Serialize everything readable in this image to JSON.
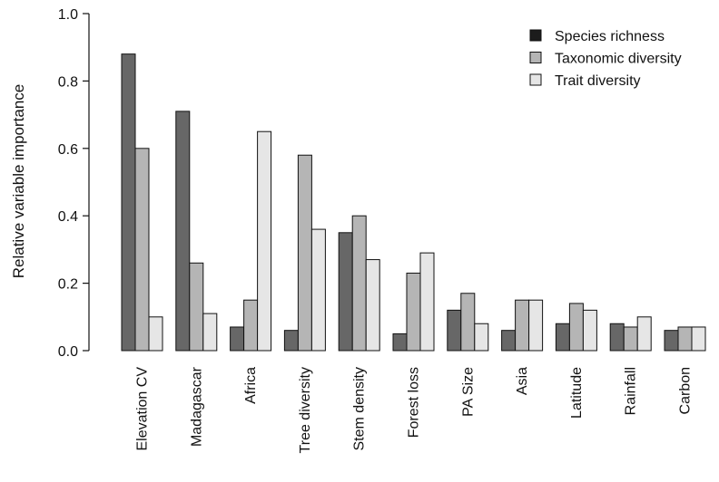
{
  "chart_data": {
    "type": "bar",
    "title": "",
    "xlabel": "",
    "ylabel": "Relative variable importance",
    "ylim": [
      0,
      1.0
    ],
    "yticks": [
      0.0,
      0.2,
      0.4,
      0.6,
      0.8,
      1.0
    ],
    "ytick_labels": [
      "0.0",
      "0.2",
      "0.4",
      "0.6",
      "0.8",
      "1.0"
    ],
    "grid": false,
    "legend_position": "top-right",
    "categories": [
      "Elevation CV",
      "Madagascar",
      "Africa",
      "Tree diversity",
      "Stem density",
      "Forest loss",
      "PA Size",
      "Asia",
      "Latitude",
      "Rainfall",
      "Carbon"
    ],
    "series": [
      {
        "name": "Species richness",
        "color": "#676767",
        "legend_color": "#1c1c1c",
        "values": [
          0.88,
          0.71,
          0.07,
          0.06,
          0.35,
          0.05,
          0.12,
          0.06,
          0.08,
          0.08,
          0.06
        ]
      },
      {
        "name": "Taxonomic diversity",
        "color": "#b5b5b5",
        "legend_color": "#b5b5b5",
        "values": [
          0.6,
          0.26,
          0.15,
          0.58,
          0.4,
          0.23,
          0.17,
          0.15,
          0.14,
          0.07,
          0.07
        ]
      },
      {
        "name": "Trait diversity",
        "color": "#e6e6e6",
        "legend_color": "#e6e6e6",
        "values": [
          0.1,
          0.11,
          0.65,
          0.36,
          0.27,
          0.29,
          0.08,
          0.15,
          0.12,
          0.1,
          0.07
        ]
      }
    ]
  }
}
